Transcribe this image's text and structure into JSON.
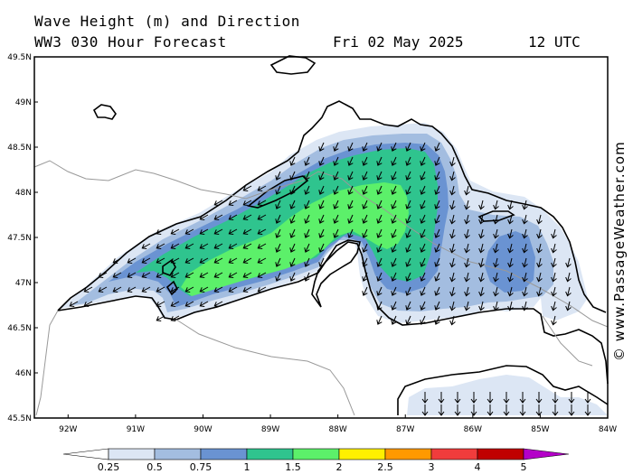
{
  "header": {
    "title": "Wave Height (m) and Direction",
    "model": "WW3 030 Hour Forecast",
    "date": "Fri 02 May 2025",
    "time": "12 UTC"
  },
  "watermark": "© www.PassageWeather.com",
  "map": {
    "lat_labels": [
      "49.5N",
      "49N",
      "48.5N",
      "48N",
      "47.5N",
      "47N",
      "46.5N",
      "46N",
      "45.5N"
    ],
    "lon_labels": [
      "92W",
      "91W",
      "90W",
      "89W",
      "88W",
      "87W",
      "86W",
      "85W",
      "84W"
    ],
    "lat_range": [
      45.5,
      49.5
    ],
    "lon_range": [
      -92.5,
      -84
    ]
  },
  "colorbar": {
    "labels": [
      "0.25",
      "0.5",
      "0.75",
      "1",
      "1.5",
      "2",
      "2.5",
      "3",
      "4",
      "5"
    ],
    "colors": [
      "#ffffff",
      "#dce6f4",
      "#a3bde0",
      "#6a93d2",
      "#2fc48e",
      "#5cf06a",
      "#fff000",
      "#ff9900",
      "#f03c3c",
      "#c00000",
      "#b400c8"
    ]
  },
  "wave_colors": {
    "lt025": "#ffffff",
    "b025_05": "#dce6f4",
    "b05_075": "#a3bde0",
    "b075_1": "#6a93d2",
    "b1_15": "#2fc48e",
    "b15_2": "#5cf06a"
  }
}
